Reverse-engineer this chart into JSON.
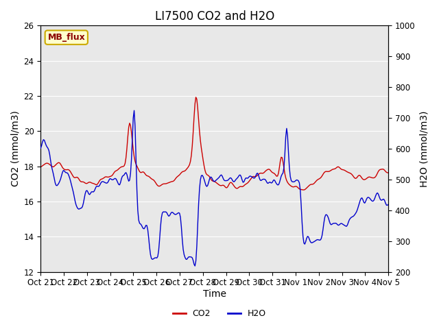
{
  "title": "LI7500 CO2 and H2O",
  "xlabel": "Time",
  "ylabel_left": "CO2 (mmol/m3)",
  "ylabel_right": "H2O (mmol/m3)",
  "xlim": [
    0,
    15
  ],
  "ylim_left": [
    12,
    26
  ],
  "ylim_right": [
    200,
    1000
  ],
  "yticks_left": [
    12,
    14,
    16,
    18,
    20,
    22,
    24,
    26
  ],
  "yticks_right": [
    200,
    300,
    400,
    500,
    600,
    700,
    800,
    900,
    1000
  ],
  "xtick_labels": [
    "Oct 21",
    "Oct 22",
    "Oct 23",
    "Oct 24",
    "Oct 25",
    "Oct 26",
    "Oct 27",
    "Oct 28",
    "Oct 29",
    "Oct 30",
    "Oct 31",
    "Nov 1",
    "Nov 2",
    "Nov 3",
    "Nov 4",
    "Nov 5"
  ],
  "co2_color": "#cc0000",
  "h2o_color": "#0000cc",
  "background_color": "#e8e8e8",
  "plot_bg_color": "#e8e8e8",
  "grid_color": "white",
  "annotation_text": "MB_flux",
  "annotation_bg": "#ffffcc",
  "annotation_border": "#ccaa00",
  "legend_co2": "CO2",
  "legend_h2o": "H2O",
  "title_fontsize": 12,
  "axis_fontsize": 10,
  "tick_fontsize": 8.5
}
